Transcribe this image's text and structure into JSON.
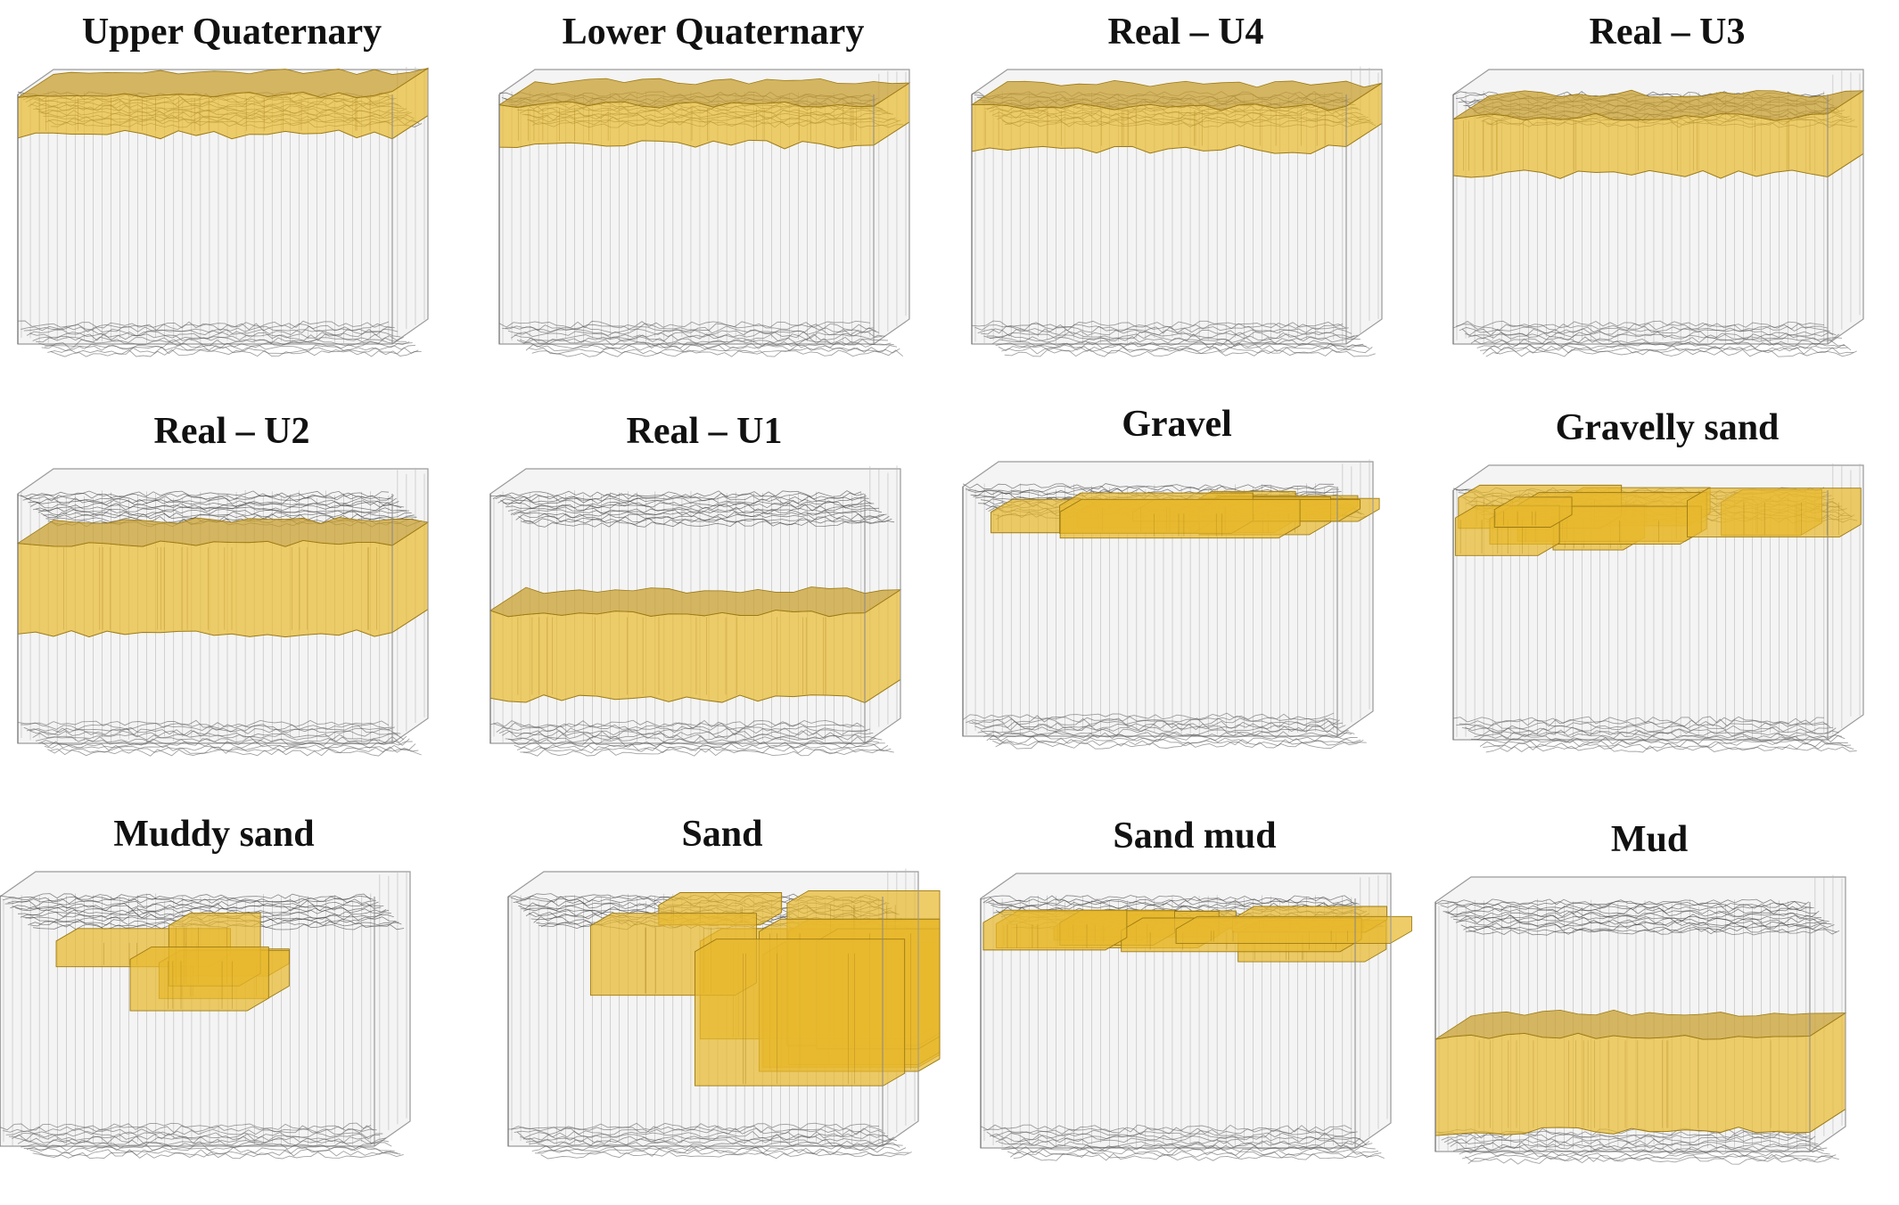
{
  "figure": {
    "colors": {
      "unit_fill": "#e8b92e",
      "unit_edge": "#9c7a14",
      "mesh": "#2b2b2b",
      "block_face": "#f4f4f4"
    },
    "panels": [
      {
        "title": "Upper Quaternary",
        "band": [
          0.0,
          0.16
        ],
        "shape": "slab"
      },
      {
        "title": "Lower Quaternary",
        "band": [
          0.04,
          0.2
        ],
        "shape": "slab"
      },
      {
        "title": "Real – U4",
        "band": [
          0.05,
          0.22
        ],
        "shape": "slab"
      },
      {
        "title": "Real – U3",
        "band": [
          0.09,
          0.32
        ],
        "shape": "slab"
      },
      {
        "title": "Real – U2",
        "band": [
          0.2,
          0.56
        ],
        "shape": "slab"
      },
      {
        "title": "Real – U1",
        "band": [
          0.48,
          0.82
        ],
        "shape": "slab"
      },
      {
        "title": "Gravel",
        "band": [
          0.04,
          0.22
        ],
        "shape": "patchy"
      },
      {
        "title": "Gravelly sand",
        "band": [
          0.02,
          0.3
        ],
        "shape": "patchy"
      },
      {
        "title": "Muddy sand",
        "band": [
          0.04,
          0.62
        ],
        "shape": "partial"
      },
      {
        "title": "Sand",
        "band": [
          0.0,
          0.62
        ],
        "shape": "patchy"
      },
      {
        "title": "Sand mud",
        "band": [
          0.08,
          0.26
        ],
        "shape": "patchy"
      },
      {
        "title": "Mud",
        "band": [
          0.54,
          0.92
        ],
        "shape": "slab"
      }
    ]
  }
}
